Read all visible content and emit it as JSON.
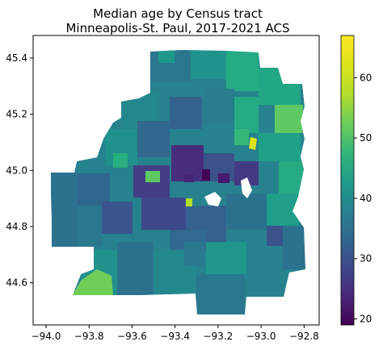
{
  "title_line1": "Median age by Census tract",
  "title_line2": "Minneapolis-St. Paul, 2017-2021 ACS",
  "x_ticks": [
    "−94.0",
    "−93.8",
    "−93.6",
    "−93.4",
    "−93.2",
    "−93.0",
    "−92.8"
  ],
  "y_ticks": [
    "44.6",
    "44.8",
    "45.0",
    "45.2",
    "45.4"
  ],
  "colorbar": {
    "ticks": [
      "20",
      "30",
      "40",
      "50",
      "60"
    ],
    "colormap": "viridis",
    "range": [
      19,
      67
    ]
  },
  "chart_data": {
    "type": "heatmap",
    "title": "Median age by Census tract",
    "subtitle": "Minneapolis-St. Paul, 2017-2021 ACS",
    "xlim": [
      -94.06,
      -92.73
    ],
    "ylim": [
      44.45,
      45.48
    ],
    "x_ticks": [
      -94.0,
      -93.8,
      -93.6,
      -93.4,
      -93.2,
      -93.0,
      -92.8
    ],
    "y_ticks": [
      44.6,
      44.8,
      45.0,
      45.2,
      45.4
    ],
    "value_range": [
      19,
      67
    ],
    "regions": [
      {
        "lon": -93.95,
        "lat": 44.9,
        "value": 42
      },
      {
        "lon": -93.82,
        "lat": 44.63,
        "value": 56
      },
      {
        "lon": -93.75,
        "lat": 44.75,
        "value": 44
      },
      {
        "lon": -93.6,
        "lat": 44.6,
        "value": 41
      },
      {
        "lon": -93.45,
        "lat": 44.52,
        "value": 40
      },
      {
        "lon": -93.1,
        "lat": 44.55,
        "value": 47
      },
      {
        "lon": -92.85,
        "lat": 44.65,
        "value": 43
      },
      {
        "lon": -92.9,
        "lat": 44.85,
        "value": 45
      },
      {
        "lon": -92.82,
        "lat": 45.2,
        "value": 56
      },
      {
        "lon": -92.95,
        "lat": 45.35,
        "value": 47
      },
      {
        "lon": -93.2,
        "lat": 45.42,
        "value": 45
      },
      {
        "lon": -93.45,
        "lat": 45.4,
        "value": 43
      },
      {
        "lon": -93.7,
        "lat": 45.2,
        "value": 42
      },
      {
        "lon": -93.85,
        "lat": 45.05,
        "value": 44
      },
      {
        "lon": -93.27,
        "lat": 44.98,
        "value": 28
      },
      {
        "lon": -93.1,
        "lat": 44.95,
        "value": 33
      },
      {
        "lon": -93.05,
        "lat": 45.08,
        "value": 58
      },
      {
        "lon": -93.35,
        "lat": 44.85,
        "value": 38
      },
      {
        "lon": -93.58,
        "lat": 44.95,
        "value": 48
      },
      {
        "lon": -93.25,
        "lat": 44.8,
        "value": 37
      },
      {
        "lon": -93.15,
        "lat": 44.75,
        "value": 39
      },
      {
        "lon": -93.4,
        "lat": 45.1,
        "value": 40
      },
      {
        "lon": -93.55,
        "lat": 44.8,
        "value": 41
      },
      {
        "lon": -93.3,
        "lat": 45.2,
        "value": 42
      }
    ]
  }
}
